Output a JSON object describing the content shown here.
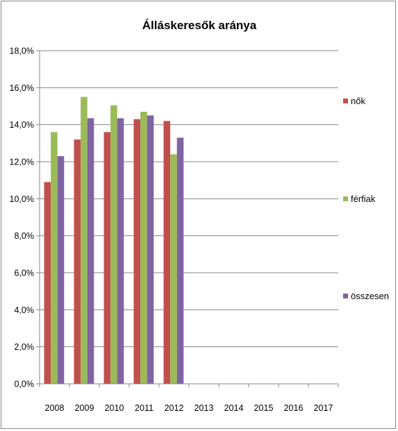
{
  "chart_data": {
    "type": "bar",
    "title": "Álláskeresők aránya",
    "categories": [
      "2008",
      "2009",
      "2010",
      "2011",
      "2012",
      "2013",
      "2014",
      "2015",
      "2016",
      "2017"
    ],
    "series": [
      {
        "name": "nők",
        "color": "#c0504d",
        "values": [
          10.9,
          13.2,
          13.6,
          14.3,
          14.2,
          null,
          null,
          null,
          null,
          null
        ]
      },
      {
        "name": "férfiak",
        "color": "#9bbb59",
        "values": [
          13.6,
          15.5,
          15.05,
          14.7,
          12.4,
          null,
          null,
          null,
          null,
          null
        ]
      },
      {
        "name": "összesen",
        "color": "#8064a2",
        "values": [
          12.3,
          14.35,
          14.35,
          14.5,
          13.3,
          null,
          null,
          null,
          null,
          null
        ]
      }
    ],
    "ylim": [
      0,
      18
    ],
    "yticks": [
      "0,0%",
      "2,0%",
      "4,0%",
      "6,0%",
      "8,0%",
      "10,0%",
      "12,0%",
      "14,0%",
      "16,0%",
      "18,0%"
    ],
    "xlabel": "",
    "ylabel": "",
    "grid": true,
    "legend_position": "right"
  }
}
